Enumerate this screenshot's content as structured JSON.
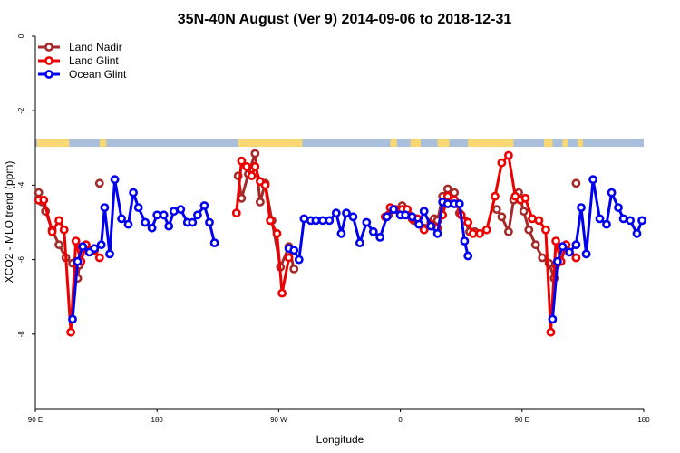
{
  "chart_data": {
    "type": "line",
    "title": "35N-40N August (Ver 9)   2014-09-06 to 2018-12-31",
    "xlabel": "Longitude",
    "ylabel": "XCO2 - MLO trend (ppm)",
    "xlim": [
      90,
      450
    ],
    "ylim": [
      -10,
      0
    ],
    "x_ticks": [
      {
        "value": 90,
        "label": "90 E"
      },
      {
        "value": 162,
        "label": "180"
      },
      {
        "value": 234,
        "label": "90 W"
      },
      {
        "value": 306,
        "label": "0"
      },
      {
        "value": 378,
        "label": "90 E"
      },
      {
        "value": 450,
        "label": "180"
      }
    ],
    "y_ticks": [
      {
        "value": 0,
        "label": "0"
      },
      {
        "value": -2,
        "label": "-2"
      },
      {
        "value": -4,
        "label": "-4"
      },
      {
        "value": -6,
        "label": "-6"
      },
      {
        "value": -8,
        "label": "-8"
      }
    ],
    "legend_position": "top-left",
    "land_ocean_band": {
      "y_range": [
        -2.97,
        -2.75
      ],
      "ocean_color": "#a9bfdc",
      "land_color": "#f9d772",
      "land_segments": [
        [
          91,
          110
        ],
        [
          128,
          132
        ],
        [
          210,
          248
        ],
        [
          300,
          304
        ],
        [
          312,
          318
        ],
        [
          328,
          335
        ],
        [
          346,
          373
        ],
        [
          391,
          396
        ],
        [
          402,
          405
        ],
        [
          411,
          414
        ]
      ]
    },
    "series": [
      {
        "name": "Land Nadir",
        "color": "#a52a2a",
        "segments": [
          [
            [
              92,
              -4.2
            ],
            [
              94,
              -4.45
            ],
            [
              96,
              -4.7
            ],
            [
              100,
              -5.2
            ],
            [
              104,
              -5.6
            ],
            [
              108,
              -5.95
            ],
            [
              112,
              -6.1
            ],
            [
              115,
              -6.5
            ],
            [
              116,
              -6.15
            ]
          ],
          [
            [
              128,
              -3.95
            ]
          ],
          [
            [
              210,
              -3.75
            ],
            [
              212,
              -4.35
            ],
            [
              216,
              -3.7
            ],
            [
              220,
              -3.15
            ],
            [
              223,
              -4.45
            ],
            [
              226,
              -3.95
            ],
            [
              230,
              -4.95
            ],
            [
              235,
              -6.2
            ],
            [
              240,
              -5.65
            ],
            [
              243,
              -6.25
            ]
          ],
          [
            [
              299,
              -4.8
            ],
            [
              303,
              -4.65
            ],
            [
              307,
              -4.55
            ],
            [
              311,
              -4.8
            ],
            [
              314,
              -4.95
            ],
            [
              320,
              -5.15
            ],
            [
              324,
              -5.0
            ],
            [
              326,
              -4.9
            ],
            [
              328,
              -4.95
            ],
            [
              331,
              -4.3
            ],
            [
              334,
              -4.1
            ],
            [
              338,
              -4.2
            ],
            [
              341,
              -4.75
            ],
            [
              344,
              -4.95
            ],
            [
              347,
              -5.25
            ],
            [
              350,
              -5.25
            ]
          ],
          [
            [
              363,
              -4.65
            ],
            [
              366,
              -4.85
            ],
            [
              370,
              -5.25
            ],
            [
              373,
              -4.4
            ],
            [
              376,
              -4.2
            ],
            [
              379,
              -4.7
            ],
            [
              382,
              -5.2
            ],
            [
              386,
              -5.6
            ],
            [
              390,
              -5.95
            ],
            [
              394,
              -6.1
            ],
            [
              397,
              -6.5
            ],
            [
              398,
              -6.15
            ]
          ],
          [
            [
              410,
              -3.95
            ]
          ]
        ]
      },
      {
        "name": "Land Glint",
        "color": "#ee0000",
        "segments": [
          [
            [
              92,
              -4.4
            ],
            [
              95,
              -4.4
            ],
            [
              100,
              -5.25
            ],
            [
              104,
              -4.95
            ],
            [
              107,
              -5.2
            ],
            [
              111,
              -7.95
            ],
            [
              114,
              -5.5
            ],
            [
              117,
              -6.05
            ],
            [
              120,
              -5.6
            ],
            [
              125,
              -5.75
            ],
            [
              128,
              -5.95
            ]
          ],
          [
            [
              209,
              -4.75
            ],
            [
              212,
              -3.35
            ],
            [
              215,
              -3.5
            ],
            [
              218,
              -3.75
            ],
            [
              220,
              -3.5
            ],
            [
              223,
              -3.9
            ],
            [
              226,
              -4.0
            ],
            [
              229,
              -4.95
            ],
            [
              233,
              -5.3
            ],
            [
              236,
              -6.9
            ],
            [
              240,
              -5.95
            ]
          ],
          [
            [
              297,
              -4.85
            ],
            [
              300,
              -4.6
            ],
            [
              303,
              -4.65
            ],
            [
              307,
              -4.65
            ],
            [
              310,
              -4.65
            ],
            [
              313,
              -4.9
            ],
            [
              316,
              -4.9
            ],
            [
              320,
              -5.2
            ],
            [
              324,
              -5.05
            ],
            [
              328,
              -5.15
            ],
            [
              331,
              -4.8
            ],
            [
              334,
              -4.3
            ],
            [
              338,
              -4.4
            ],
            [
              342,
              -4.8
            ],
            [
              346,
              -5.0
            ],
            [
              349,
              -5.3
            ],
            [
              353,
              -5.3
            ],
            [
              357,
              -5.2
            ],
            [
              362,
              -4.3
            ],
            [
              366,
              -3.4
            ],
            [
              370,
              -3.2
            ],
            [
              374,
              -4.3
            ],
            [
              377,
              -4.4
            ],
            [
              380,
              -4.35
            ],
            [
              384,
              -4.9
            ],
            [
              388,
              -4.95
            ],
            [
              392,
              -5.2
            ],
            [
              395,
              -7.95
            ],
            [
              398,
              -5.5
            ],
            [
              401,
              -6.05
            ],
            [
              404,
              -5.6
            ],
            [
              410,
              -5.95
            ]
          ]
        ]
      },
      {
        "name": "Ocean Glint",
        "color": "#0000ee",
        "segments": [
          [
            [
              112,
              -7.6
            ],
            [
              115,
              -6.05
            ],
            [
              118,
              -5.65
            ],
            [
              122,
              -5.8
            ],
            [
              125,
              -5.7
            ],
            [
              129,
              -5.6
            ],
            [
              131,
              -4.6
            ],
            [
              134,
              -5.85
            ],
            [
              137,
              -3.85
            ],
            [
              141,
              -4.9
            ],
            [
              145,
              -5.05
            ],
            [
              148,
              -4.2
            ],
            [
              151,
              -4.6
            ],
            [
              155,
              -5.0
            ],
            [
              159,
              -5.15
            ],
            [
              162,
              -4.8
            ],
            [
              166,
              -4.8
            ],
            [
              169,
              -5.1
            ],
            [
              172,
              -4.7
            ],
            [
              176,
              -4.65
            ],
            [
              180,
              -5.0
            ],
            [
              183,
              -5.0
            ],
            [
              186,
              -4.8
            ],
            [
              190,
              -4.55
            ],
            [
              193,
              -5.0
            ],
            [
              196,
              -5.55
            ]
          ],
          [
            [
              240,
              -5.7
            ],
            [
              243,
              -5.75
            ],
            [
              246,
              -6.0
            ],
            [
              249,
              -4.9
            ],
            [
              253,
              -4.95
            ],
            [
              256,
              -4.95
            ],
            [
              260,
              -4.95
            ],
            [
              264,
              -4.95
            ],
            [
              268,
              -4.75
            ],
            [
              271,
              -5.3
            ],
            [
              274,
              -4.75
            ],
            [
              278,
              -4.85
            ],
            [
              282,
              -5.55
            ],
            [
              286,
              -5.0
            ],
            [
              290,
              -5.25
            ],
            [
              294,
              -5.4
            ],
            [
              298,
              -4.85
            ],
            [
              302,
              -4.65
            ],
            [
              306,
              -4.8
            ],
            [
              309,
              -4.8
            ],
            [
              313,
              -4.85
            ],
            [
              317,
              -5.05
            ],
            [
              320,
              -4.7
            ],
            [
              324,
              -5.1
            ],
            [
              328,
              -5.3
            ],
            [
              331,
              -4.45
            ],
            [
              334,
              -4.5
            ],
            [
              338,
              -4.5
            ],
            [
              341,
              -4.5
            ],
            [
              344,
              -5.5
            ],
            [
              346,
              -5.9
            ]
          ],
          [
            [
              396,
              -7.6
            ],
            [
              399,
              -6.05
            ],
            [
              402,
              -5.65
            ],
            [
              406,
              -5.8
            ],
            [
              410,
              -5.6
            ],
            [
              413,
              -4.6
            ],
            [
              416,
              -5.85
            ],
            [
              420,
              -3.85
            ],
            [
              424,
              -4.9
            ],
            [
              428,
              -5.05
            ],
            [
              431,
              -4.2
            ],
            [
              435,
              -4.6
            ],
            [
              438,
              -4.9
            ],
            [
              442,
              -4.95
            ],
            [
              446,
              -5.3
            ],
            [
              449,
              -4.95
            ]
          ]
        ]
      }
    ]
  }
}
